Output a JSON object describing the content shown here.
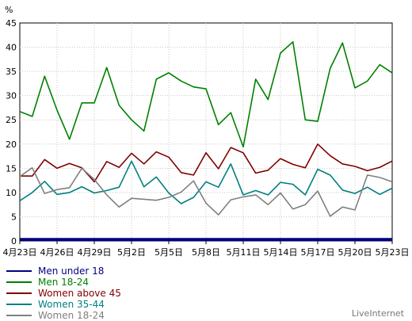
{
  "chart_data": {
    "type": "line",
    "y_unit_label": "%",
    "ylim": [
      0,
      45
    ],
    "y_ticks": [
      0,
      5,
      10,
      15,
      20,
      25,
      30,
      35,
      40,
      45
    ],
    "x_tick_labels": [
      "4月23日",
      "4月26日",
      "4月29日",
      "5月2日",
      "5月5日",
      "5月8日",
      "5月11日",
      "5月14日",
      "5月17日",
      "5月20日",
      "5月23日"
    ],
    "grid": true,
    "legend_position": "bottom-left",
    "series": [
      {
        "name": "Men under 18",
        "color": "#000080",
        "values": [
          0.3,
          0.3,
          0.3,
          0.3,
          0.3,
          0.3,
          0.3,
          0.3,
          0.3,
          0.3,
          0.3,
          0.3,
          0.3,
          0.3,
          0.3,
          0.3,
          0.3,
          0.3,
          0.3,
          0.3,
          0.3,
          0.3,
          0.3,
          0.3,
          0.3,
          0.3,
          0.3,
          0.3,
          0.3,
          0.3,
          0.3
        ]
      },
      {
        "name": "Men 18-24",
        "color": "#008000",
        "values": [
          26.7,
          25.7,
          34.0,
          27.0,
          21.0,
          28.5,
          28.5,
          35.8,
          28.0,
          25.0,
          22.7,
          33.4,
          34.7,
          33.0,
          31.8,
          31.4,
          24.0,
          26.5,
          19.4,
          33.4,
          29.2,
          38.8,
          41.1,
          25.0,
          24.7,
          35.6,
          40.9,
          31.6,
          33.0,
          36.4,
          34.7
        ]
      },
      {
        "name": "Women above 45",
        "color": "#800000",
        "values": [
          13.4,
          13.4,
          16.8,
          15.0,
          16.0,
          15.1,
          12.2,
          16.4,
          15.2,
          18.1,
          15.9,
          18.4,
          17.3,
          14.1,
          13.6,
          18.2,
          14.9,
          19.3,
          18.2,
          14.0,
          14.6,
          17.0,
          15.8,
          15.1,
          20.0,
          17.6,
          15.9,
          15.4,
          14.5,
          15.2,
          16.5
        ]
      },
      {
        "name": "Women 35-44",
        "color": "#008080",
        "values": [
          8.3,
          10.0,
          12.3,
          9.6,
          10.0,
          11.2,
          9.9,
          10.4,
          11.1,
          16.5,
          11.2,
          13.2,
          9.9,
          7.7,
          9.0,
          12.2,
          11.1,
          15.9,
          9.5,
          10.4,
          9.5,
          12.1,
          11.7,
          9.5,
          14.8,
          13.6,
          10.5,
          9.8,
          11.1,
          9.6,
          10.9
        ]
      },
      {
        "name": "Women 18-24",
        "color": "#808080",
        "values": [
          13.3,
          15.1,
          9.8,
          10.6,
          11.0,
          15.0,
          12.7,
          9.5,
          7.0,
          8.8,
          8.6,
          8.4,
          9.0,
          10.1,
          12.4,
          7.8,
          5.4,
          8.5,
          9.1,
          9.5,
          7.5,
          9.9,
          6.6,
          7.5,
          10.3,
          5.1,
          7.0,
          6.4,
          13.6,
          13.1,
          12.2
        ]
      }
    ]
  },
  "watermark": "LiveInternet"
}
